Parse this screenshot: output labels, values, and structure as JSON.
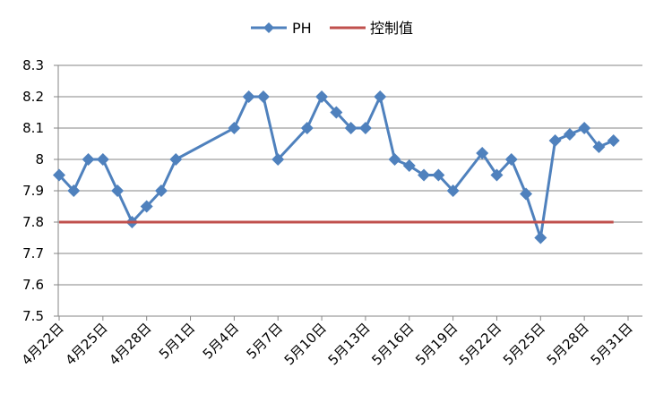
{
  "chart_data": {
    "type": "line",
    "title": "",
    "xlabel": "",
    "ylabel": "",
    "ylim": [
      7.5,
      8.3
    ],
    "yticks": [
      7.5,
      7.6,
      7.7,
      7.8,
      7.9,
      8,
      8.1,
      8.2,
      8.3
    ],
    "x_range": [
      "4月22日",
      "5月31日"
    ],
    "xticks": [
      "4月22日",
      "4月25日",
      "4月28日",
      "5月1日",
      "5月4日",
      "5月7日",
      "5月10日",
      "5月13日",
      "5月16日",
      "5月19日",
      "5月22日",
      "5月25日",
      "5月28日",
      "5月31日"
    ],
    "grid": "horizontal",
    "legend_position": "top",
    "series": [
      {
        "name": "PH",
        "color": "#4F81BD",
        "marker": "diamond",
        "points": [
          {
            "x": "4月22日",
            "y": 7.95
          },
          {
            "x": "4月23日",
            "y": 7.9
          },
          {
            "x": "4月24日",
            "y": 8.0
          },
          {
            "x": "4月25日",
            "y": 8.0
          },
          {
            "x": "4月26日",
            "y": 7.9
          },
          {
            "x": "4月27日",
            "y": 7.8
          },
          {
            "x": "4月28日",
            "y": 7.85
          },
          {
            "x": "4月29日",
            "y": 7.9
          },
          {
            "x": "4月30日",
            "y": 8.0
          },
          {
            "x": "5月4日",
            "y": 8.1
          },
          {
            "x": "5月5日",
            "y": 8.2
          },
          {
            "x": "5月6日",
            "y": 8.2
          },
          {
            "x": "5月7日",
            "y": 8.0
          },
          {
            "x": "5月9日",
            "y": 8.1
          },
          {
            "x": "5月10日",
            "y": 8.2
          },
          {
            "x": "5月11日",
            "y": 8.15
          },
          {
            "x": "5月12日",
            "y": 8.1
          },
          {
            "x": "5月13日",
            "y": 8.1
          },
          {
            "x": "5月14日",
            "y": 8.2
          },
          {
            "x": "5月15日",
            "y": 8.0
          },
          {
            "x": "5月16日",
            "y": 7.98
          },
          {
            "x": "5月17日",
            "y": 7.95
          },
          {
            "x": "5月18日",
            "y": 7.95
          },
          {
            "x": "5月19日",
            "y": 7.9
          },
          {
            "x": "5月21日",
            "y": 8.02
          },
          {
            "x": "5月22日",
            "y": 7.95
          },
          {
            "x": "5月23日",
            "y": 8.0
          },
          {
            "x": "5月24日",
            "y": 7.89
          },
          {
            "x": "5月25日",
            "y": 7.75
          },
          {
            "x": "5月26日",
            "y": 8.06
          },
          {
            "x": "5月27日",
            "y": 8.08
          },
          {
            "x": "5月28日",
            "y": 8.1
          },
          {
            "x": "5月29日",
            "y": 8.04
          },
          {
            "x": "5月30日",
            "y": 8.06
          }
        ]
      },
      {
        "name": "控制值",
        "color": "#C0504D",
        "marker": "none",
        "constant": 7.8,
        "x_from": "4月22日",
        "x_to": "5月30日"
      }
    ]
  }
}
